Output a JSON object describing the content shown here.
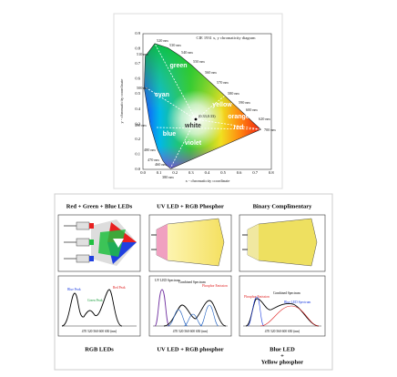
{
  "cie": {
    "title": "CIE 1931 x, y chromaticity diagram",
    "y_label": "y - chromaticity coordinate",
    "x_label": "x - chromaticity coordinate",
    "x_ticks": [
      "0.0",
      "0.1",
      "0.2",
      "0.3",
      "0.4",
      "0.5",
      "0.6",
      "0.7",
      "0.8"
    ],
    "y_ticks": [
      "0.0",
      "0.1",
      "0.2",
      "0.3",
      "0.4",
      "0.5",
      "0.6",
      "0.7",
      "0.8",
      "0.9"
    ],
    "wavelengths": [
      "520 nm",
      "510 nm",
      "530 nm",
      "540 nm",
      "550 nm",
      "560 nm",
      "570 nm",
      "580 nm",
      "590 nm",
      "600 nm",
      "620 nm",
      "700 nm",
      "500 nm",
      "490 nm",
      "480 nm",
      "470 nm",
      "460 nm",
      "380 nm"
    ],
    "regions": [
      "green",
      "cyan",
      "yellow",
      "orange",
      "red",
      "white",
      "blue",
      "violet"
    ],
    "white_point": "(0.33,0.33)"
  },
  "panels": [
    {
      "title": "Red + Green + Blue LEDs",
      "spectrum_labels": [
        "Blue Peak",
        "Green Peak",
        "Red Peak"
      ],
      "axis": "470 520 560 600 650 (nm)",
      "caption": [
        "RGB LEDs"
      ]
    },
    {
      "title": "UV LED + RGB Phosphor",
      "spectrum_labels": [
        "UV LED Spectrum",
        "Combined Spectrum",
        "Phosphor Emission"
      ],
      "axis": "470 520 560 600 650 (nm)",
      "caption": [
        "UV LED + RGB phosphor"
      ]
    },
    {
      "title": "Binary Complimentary",
      "spectrum_labels": [
        "Phosphor Emission",
        "Combined Spectrum",
        "Blue LED Spectrum"
      ],
      "axis": "470 520 560 600 650 (nm)",
      "caption": [
        "Blue LED",
        "+",
        "Yellow phosphor"
      ]
    }
  ]
}
